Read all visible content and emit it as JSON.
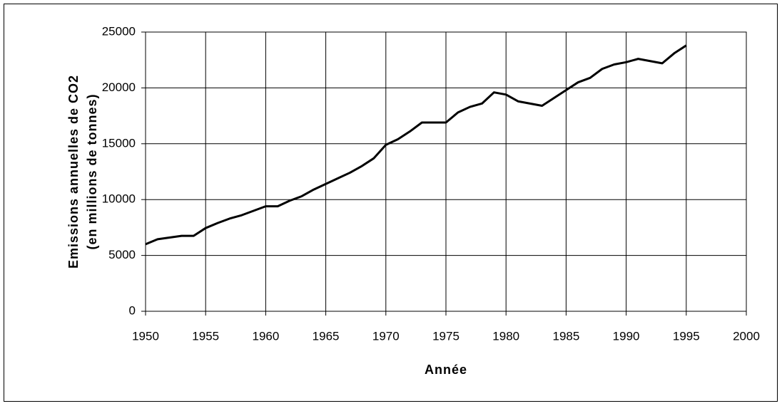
{
  "chart_data": {
    "type": "line",
    "ylabel": [
      "Emissions annuelles de CO2",
      "(en millions de tonnes)"
    ],
    "xlabel": "Année",
    "x": [
      1950,
      1951,
      1952,
      1953,
      1954,
      1955,
      1956,
      1957,
      1958,
      1959,
      1960,
      1961,
      1962,
      1963,
      1964,
      1965,
      1966,
      1967,
      1968,
      1969,
      1970,
      1971,
      1972,
      1973,
      1974,
      1975,
      1976,
      1977,
      1978,
      1979,
      1980,
      1981,
      1982,
      1983,
      1984,
      1985,
      1986,
      1987,
      1988,
      1989,
      1990,
      1991,
      1992,
      1993,
      1994,
      1995
    ],
    "series": [
      {
        "color": "#000000",
        "values": [
          6000,
          6450,
          6600,
          6750,
          6750,
          7450,
          7900,
          8300,
          8600,
          9000,
          9400,
          9400,
          9900,
          10300,
          10900,
          11400,
          11900,
          12400,
          13000,
          13700,
          14900,
          15400,
          16100,
          16900,
          16900,
          16900,
          17800,
          18300,
          18600,
          19600,
          19400,
          18800,
          18600,
          18400,
          19100,
          19800,
          20500,
          20900,
          21700,
          22100,
          22300,
          22600,
          22400,
          22200,
          23100,
          23800
        ]
      }
    ],
    "xlim": [
      1950,
      2000
    ],
    "xticks": [
      1950,
      1955,
      1960,
      1965,
      1970,
      1975,
      1980,
      1985,
      1990,
      1995,
      2000
    ],
    "ylim": [
      0,
      25000
    ],
    "yticks": [
      0,
      5000,
      10000,
      15000,
      20000,
      25000
    ],
    "grid": true
  }
}
